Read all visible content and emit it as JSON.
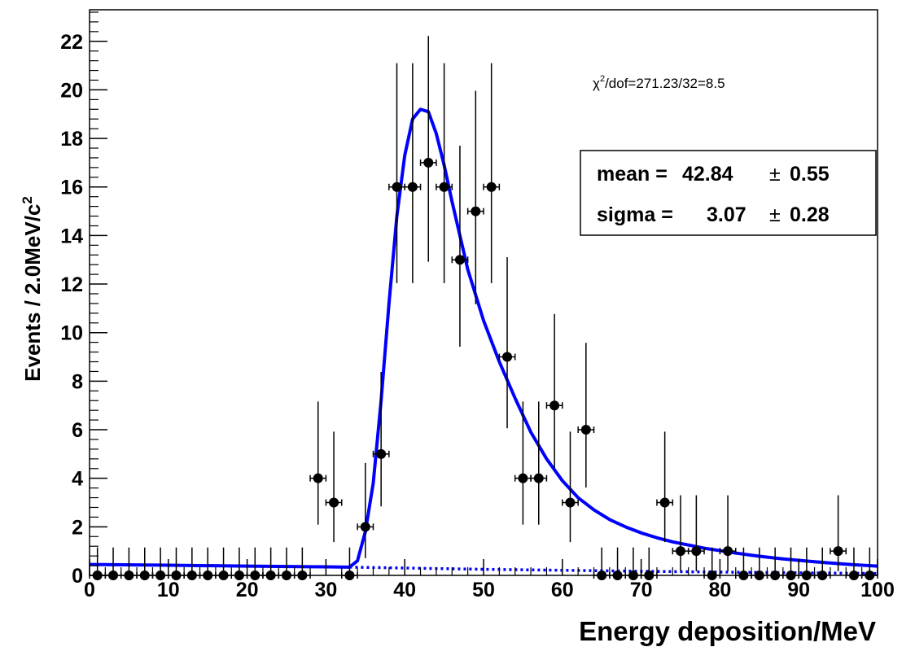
{
  "chart_data": {
    "type": "scatter",
    "xlabel": "Energy deposition/MeV",
    "ylabel": "Events / 2.0MeV/c",
    "ylabel_superscript": "2",
    "xlim": [
      0,
      100
    ],
    "ylim": [
      0,
      23.3
    ],
    "x_ticks": [
      0,
      10,
      20,
      30,
      40,
      50,
      60,
      70,
      80,
      90,
      100
    ],
    "y_ticks": [
      0,
      2,
      4,
      6,
      8,
      10,
      12,
      14,
      16,
      18,
      20,
      22
    ],
    "bin_width": 2,
    "grid": false,
    "legend": "none",
    "annotations": {
      "chi2_prefix": "χ",
      "chi2_sup": "2",
      "chi2_rest": "/dof=271.23/32=8.5"
    },
    "stats_box": {
      "mean_label": "mean =",
      "mean_value": "42.84",
      "mean_error": "0.55",
      "sigma_label": "sigma =",
      "sigma_value": "3.07",
      "sigma_error": "0.28",
      "pm_symbol": "±"
    },
    "series": [
      {
        "x": [
          1,
          3,
          5,
          7,
          9,
          11,
          13,
          15,
          17,
          19,
          21,
          23,
          25,
          27,
          29,
          31,
          33,
          35,
          37,
          39,
          41,
          43,
          45,
          47,
          49,
          51,
          53,
          55,
          57,
          59,
          61,
          63,
          65,
          67,
          69,
          71,
          73,
          75,
          77,
          79,
          81,
          83,
          85,
          87,
          89,
          91,
          93,
          95,
          97,
          99
        ],
        "y": [
          0,
          0,
          0,
          0,
          0,
          0,
          0,
          0,
          0,
          0,
          0,
          0,
          0,
          0,
          4,
          3,
          0,
          2,
          5,
          16,
          16,
          17,
          16,
          13,
          15,
          16,
          9,
          4,
          4,
          7,
          3,
          6,
          0,
          0,
          0,
          0,
          3,
          1,
          1,
          0,
          1,
          0,
          0,
          0,
          0,
          0,
          0,
          1,
          0,
          0
        ],
        "y_err_up": [
          1.15,
          1.15,
          1.15,
          1.15,
          1.15,
          1.15,
          1.15,
          1.15,
          1.15,
          1.15,
          1.15,
          1.15,
          1.15,
          1.15,
          3.16,
          2.92,
          1.15,
          2.63,
          3.38,
          5.1,
          5.1,
          5.22,
          5.1,
          4.7,
          4.96,
          5.1,
          4.11,
          3.16,
          3.16,
          3.77,
          2.92,
          3.58,
          1.15,
          1.15,
          1.15,
          1.15,
          2.92,
          2.3,
          2.3,
          1.15,
          2.3,
          1.15,
          1.15,
          1.15,
          1.15,
          1.15,
          1.15,
          2.3,
          1.15,
          1.15
        ],
        "y_err_down": [
          0,
          0,
          0,
          0,
          0,
          0,
          0,
          0,
          0,
          0,
          0,
          0,
          0,
          0,
          1.91,
          1.63,
          0,
          1.29,
          2.16,
          3.96,
          3.96,
          4.08,
          3.96,
          3.58,
          3.83,
          3.96,
          2.94,
          1.91,
          1.91,
          2.58,
          1.63,
          2.38,
          0,
          0,
          0,
          0,
          1.63,
          0.83,
          0.83,
          0,
          0.83,
          0,
          0,
          0,
          0,
          0,
          0,
          0.83,
          0,
          0
        ]
      }
    ],
    "fit_curve": {
      "color": "#0000ff",
      "x": [
        0,
        10,
        20,
        30,
        33,
        34,
        35,
        36,
        37,
        38,
        39,
        40,
        41,
        42,
        43,
        44,
        45,
        46,
        47,
        48,
        50,
        52,
        54,
        56,
        58,
        60,
        62,
        64,
        66,
        68,
        70,
        72,
        74,
        76,
        78,
        80,
        82,
        84,
        86,
        88,
        90,
        92,
        94,
        96,
        98,
        100
      ],
      "y": [
        0.45,
        0.42,
        0.38,
        0.35,
        0.34,
        0.6,
        1.8,
        3.8,
        7.2,
        11.2,
        14.8,
        17.3,
        18.8,
        19.2,
        19.1,
        18.2,
        16.9,
        15.4,
        14.0,
        12.6,
        10.5,
        8.8,
        7.3,
        5.9,
        4.8,
        3.9,
        3.2,
        2.7,
        2.3,
        2.0,
        1.75,
        1.55,
        1.38,
        1.25,
        1.12,
        1.02,
        0.92,
        0.83,
        0.75,
        0.68,
        0.62,
        0.56,
        0.51,
        0.46,
        0.42,
        0.38
      ]
    },
    "background_curve": {
      "color": "#0000ff",
      "style": "dotted",
      "x": [
        33,
        50,
        70,
        85,
        100
      ],
      "y": [
        0.34,
        0.25,
        0.17,
        0.12,
        0.08
      ]
    }
  }
}
